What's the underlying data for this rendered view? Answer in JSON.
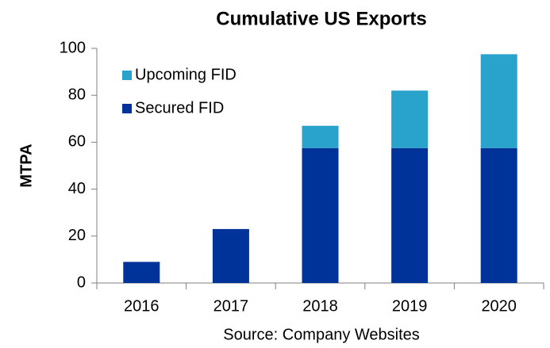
{
  "chart_data": {
    "type": "stacked_bar",
    "title": "Cumulative US Exports",
    "ylabel": "MTPA",
    "source": "Source: Company Websites",
    "categories": [
      "2016",
      "2017",
      "2018",
      "2019",
      "2020"
    ],
    "series": [
      {
        "name": "Secured FID",
        "color": "#00339a",
        "values": [
          9,
          23,
          57.5,
          57.5,
          57.5
        ]
      },
      {
        "name": "Upcoming FID",
        "color": "#2aa3cc",
        "values": [
          0,
          0,
          9.5,
          24.5,
          40
        ]
      }
    ],
    "ylim": [
      0,
      100
    ],
    "yticks": [
      0,
      20,
      40,
      60,
      80,
      100
    ],
    "legend": "upper left"
  }
}
